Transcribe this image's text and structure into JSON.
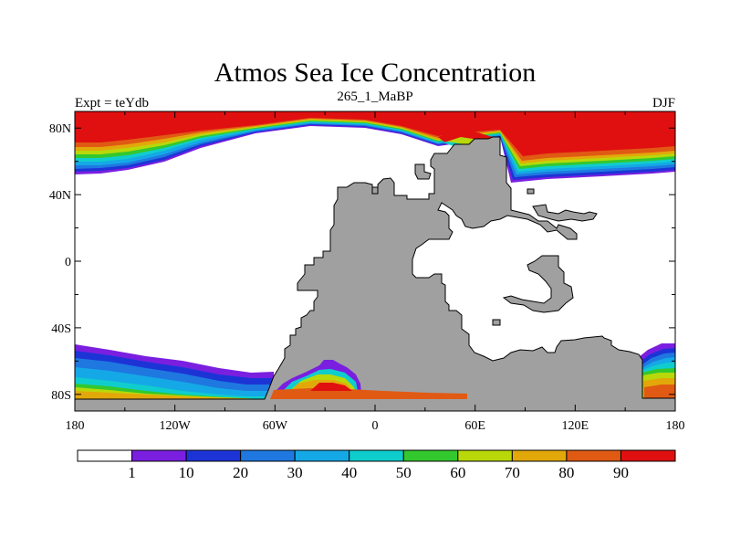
{
  "title": "Atmos Sea Ice Concentration",
  "subtitle_left": "Expt = teYdb",
  "subtitle_center": "265_1_MaBP",
  "subtitle_right": "DJF",
  "map": {
    "projection": "cylindrical equidistant",
    "lon_range": [
      -180,
      180
    ],
    "lat_range": [
      -90,
      90
    ],
    "x_ticks": [
      {
        "lon": -180,
        "label": "180"
      },
      {
        "lon": -120,
        "label": "120W"
      },
      {
        "lon": -60,
        "label": "60W"
      },
      {
        "lon": 0,
        "label": "0"
      },
      {
        "lon": 60,
        "label": "60E"
      },
      {
        "lon": 120,
        "label": "120E"
      },
      {
        "lon": 180,
        "label": "180"
      }
    ],
    "y_ticks": [
      {
        "lat": 80,
        "label": "80N"
      },
      {
        "lat": 40,
        "label": "40N"
      },
      {
        "lat": 0,
        "label": "0"
      },
      {
        "lat": -40,
        "label": "40S"
      },
      {
        "lat": -80,
        "label": "80S"
      }
    ],
    "land_color": "#a0a0a0",
    "ocean_color": "#ffffff"
  },
  "colorbar": {
    "colors": [
      "#ffffff",
      "#7a1fe0",
      "#1c34d6",
      "#1e78e0",
      "#15a8e6",
      "#10cdcd",
      "#33c82e",
      "#b8d80a",
      "#e2a80a",
      "#e05a14",
      "#e01010"
    ],
    "labels": [
      "1",
      "10",
      "20",
      "30",
      "40",
      "50",
      "60",
      "70",
      "80",
      "90"
    ]
  },
  "chart_data": {
    "type": "heatmap",
    "variable": "Sea ice concentration (%)",
    "levels": [
      1,
      10,
      20,
      30,
      40,
      50,
      60,
      70,
      80,
      90
    ],
    "season": "DJF",
    "experiment": "teYdb"
  }
}
